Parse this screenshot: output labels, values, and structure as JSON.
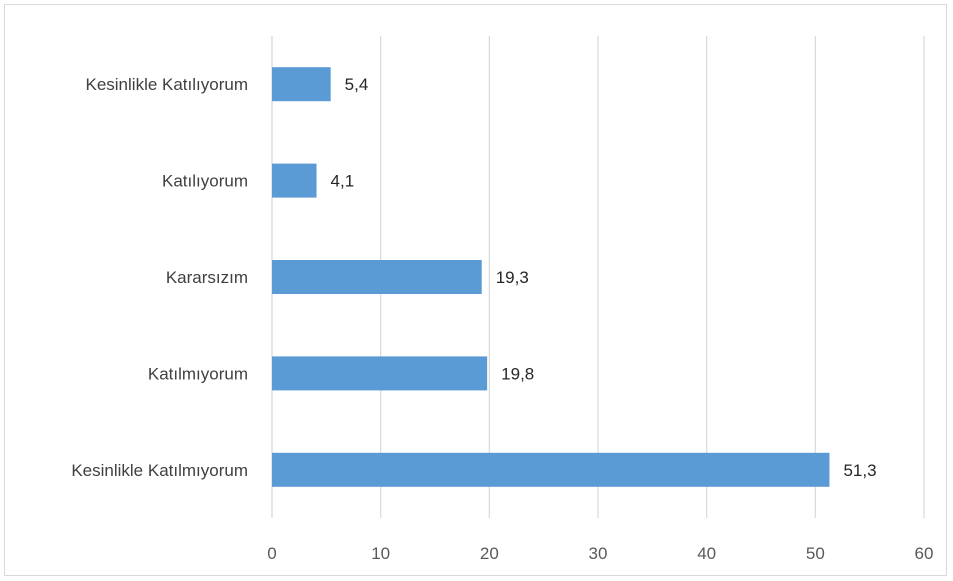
{
  "chart_data": {
    "type": "bar",
    "orientation": "horizontal",
    "categories": [
      "Kesinlikle Katılıyorum",
      "Katılıyorum",
      "Kararsızım",
      "Katılmıyorum",
      "Kesinlikle Katılmıyorum"
    ],
    "values": [
      5.4,
      4.1,
      19.3,
      19.8,
      51.3
    ],
    "value_labels": [
      "5,4",
      "4,1",
      "19,3",
      "19,8",
      "51,3"
    ],
    "xlim": [
      0,
      60
    ],
    "xticks": [
      0,
      10,
      20,
      30,
      40,
      50,
      60
    ],
    "title": "",
    "xlabel": "",
    "ylabel": "",
    "grid": "vertical",
    "legend": "none",
    "bar_color": "#5b9bd5",
    "grid_color": "#d9d9d9"
  }
}
